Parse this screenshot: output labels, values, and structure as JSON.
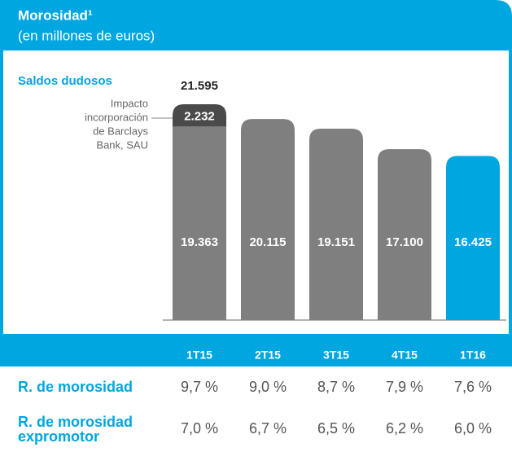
{
  "chart_data": {
    "type": "bar",
    "stacked": true,
    "title": "Morosidad¹",
    "subtitle": "(en millones de euros)",
    "categories": [
      "1T15",
      "2T15",
      "3T15",
      "4T15",
      "1T16"
    ],
    "series": [
      {
        "name": "Saldos dudosos",
        "colors": [
          "#7f7f7f",
          "#7f7f7f",
          "#7f7f7f",
          "#7f7f7f",
          "#00a6e0"
        ],
        "values": [
          19363,
          20115,
          19151,
          17100,
          16425
        ],
        "value_labels": [
          "19.363",
          "20.115",
          "19.151",
          "17.100",
          "16.425"
        ]
      },
      {
        "name_lines": [
          "Impacto",
          "incorporación",
          "de Barclays",
          "Bank, SAU"
        ],
        "color": "#4a4a4a",
        "values": [
          2232,
          null,
          null,
          null,
          null
        ],
        "value_labels": [
          "2.232",
          null,
          null,
          null,
          null
        ]
      }
    ],
    "total": {
      "value": 21595,
      "label": "21.595"
    },
    "ratios": [
      {
        "name": "R. de morosidad",
        "values": [
          9.7,
          9.0,
          8.7,
          7.9,
          7.6
        ],
        "value_labels": [
          "9,7 %",
          "9,0 %",
          "8,7 %",
          "7,9 %",
          "7,6 %"
        ]
      },
      {
        "name": "R. de morosidad expromotor",
        "values": [
          7.0,
          6.7,
          6.5,
          6.2,
          6.0
        ],
        "value_labels": [
          "7,0 %",
          "6,7 %",
          "6,5 %",
          "6,2 %",
          "6,0 %"
        ]
      }
    ]
  }
}
